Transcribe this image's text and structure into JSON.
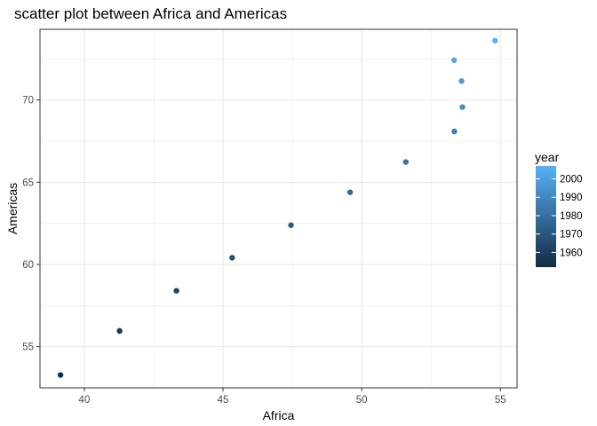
{
  "chart_data": {
    "type": "scatter",
    "title": "scatter plot between Africa and Americas",
    "xlabel": "Africa",
    "ylabel": "Americas",
    "xlim": [
      38.4,
      55.6
    ],
    "ylim": [
      52.5,
      74.3
    ],
    "x_ticks": [
      40,
      45,
      50,
      55
    ],
    "y_ticks": [
      55,
      60,
      65,
      70
    ],
    "grid": true,
    "legend": {
      "title": "year",
      "placement": "right",
      "range": [
        1952,
        2007
      ],
      "ticks": [
        1960,
        1970,
        1980,
        1990,
        2000
      ],
      "color_low": "#132B43",
      "color_high": "#56B1F7"
    },
    "points": [
      {
        "x": 39.14,
        "y": 53.28,
        "year": 1952
      },
      {
        "x": 41.27,
        "y": 55.96,
        "year": 1957
      },
      {
        "x": 43.32,
        "y": 58.4,
        "year": 1962
      },
      {
        "x": 45.33,
        "y": 60.41,
        "year": 1967
      },
      {
        "x": 47.45,
        "y": 62.39,
        "year": 1972
      },
      {
        "x": 49.58,
        "y": 64.39,
        "year": 1977
      },
      {
        "x": 51.59,
        "y": 66.23,
        "year": 1982
      },
      {
        "x": 53.34,
        "y": 68.09,
        "year": 1987
      },
      {
        "x": 53.63,
        "y": 69.57,
        "year": 1992
      },
      {
        "x": 53.6,
        "y": 71.15,
        "year": 1997
      },
      {
        "x": 53.33,
        "y": 72.42,
        "year": 2002
      },
      {
        "x": 54.81,
        "y": 73.61,
        "year": 2007
      }
    ]
  }
}
